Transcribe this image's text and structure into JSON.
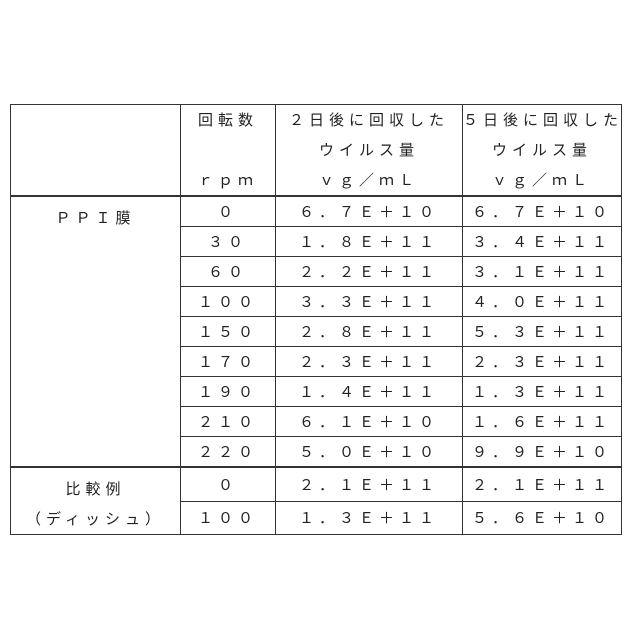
{
  "header": {
    "rpm_col": [
      "回転数",
      "",
      "ｒｐｍ"
    ],
    "day2_col": [
      "２日後に回収した",
      "ウイルス量",
      "ｖｇ／ｍＬ"
    ],
    "day5_col": [
      "５日後に回収した",
      "ウイルス量",
      "ｖｇ／ｍＬ"
    ]
  },
  "groups": [
    {
      "label": [
        "ＰＰＩ膜"
      ],
      "rows": [
        {
          "rpm": "０",
          "day2": "６．７Ｅ＋１０",
          "day5": "６．７Ｅ＋１０"
        },
        {
          "rpm": "３０",
          "day2": "１．８Ｅ＋１１",
          "day5": "３．４Ｅ＋１１"
        },
        {
          "rpm": "６０",
          "day2": "２．２Ｅ＋１１",
          "day5": "３．１Ｅ＋１１"
        },
        {
          "rpm": "１００",
          "day2": "３．３Ｅ＋１１",
          "day5": "４．０Ｅ＋１１"
        },
        {
          "rpm": "１５０",
          "day2": "２．８Ｅ＋１１",
          "day5": "５．３Ｅ＋１１"
        },
        {
          "rpm": "１７０",
          "day2": "２．３Ｅ＋１１",
          "day5": "２．３Ｅ＋１１"
        },
        {
          "rpm": "１９０",
          "day2": "１．４Ｅ＋１１",
          "day5": "１．３Ｅ＋１１"
        },
        {
          "rpm": "２１０",
          "day2": "６．１Ｅ＋１０",
          "day5": "１．６Ｅ＋１１"
        },
        {
          "rpm": "２２０",
          "day2": "５．０Ｅ＋１０",
          "day5": "９．９Ｅ＋１０"
        }
      ]
    },
    {
      "label": [
        "比較例",
        "（ディッシュ）"
      ],
      "rows": [
        {
          "rpm": "０",
          "day2": "２．１Ｅ＋１１",
          "day5": "２．１Ｅ＋１１"
        },
        {
          "rpm": "１００",
          "day2": "１．３Ｅ＋１１",
          "day5": "５．６Ｅ＋１０"
        }
      ]
    }
  ]
}
